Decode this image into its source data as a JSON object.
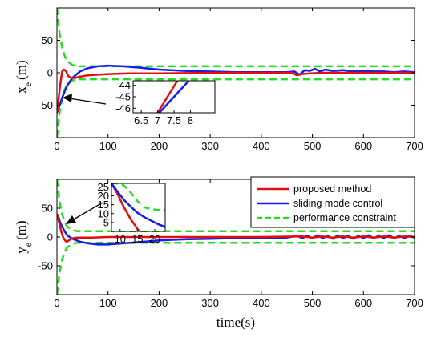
{
  "colors": {
    "proposed": "#e01010",
    "smc": "#1a1aee",
    "constraint": "#22dd22"
  },
  "legend": {
    "proposed": "proposed method",
    "smc": "sliding mode control",
    "constraint": "performance constraint"
  },
  "chart_data": [
    {
      "type": "line",
      "ylabel_main": "x",
      "ylabel_sub": "e",
      "ylabel_unit": "(m)",
      "xlim": [
        0,
        700
      ],
      "ylim": [
        -100,
        100
      ],
      "x_ticks": [
        0,
        100,
        200,
        300,
        400,
        500,
        600,
        700
      ],
      "y_ticks": [
        -50,
        0,
        50
      ],
      "series": [
        {
          "key": "constraint",
          "style": "dashed",
          "x": [
            0,
            5,
            10,
            15,
            20,
            30,
            40,
            60,
            80,
            120,
            200,
            300,
            700
          ],
          "y": [
            100,
            62,
            40,
            26,
            18,
            12,
            10,
            10,
            10,
            10,
            10,
            10,
            10
          ]
        },
        {
          "key": "constraint",
          "style": "dashed",
          "x": [
            0,
            5,
            10,
            15,
            20,
            30,
            40,
            60,
            80,
            120,
            200,
            300,
            700
          ],
          "y": [
            -100,
            -62,
            -40,
            -26,
            -18,
            -12,
            -10,
            -10,
            -10,
            -10,
            -10,
            -10,
            -10
          ]
        },
        {
          "key": "smc",
          "style": "solid",
          "x": [
            0,
            3,
            7,
            12,
            20,
            30,
            45,
            60,
            80,
            100,
            130,
            160,
            200,
            250,
            300,
            350,
            400,
            450,
            465,
            475,
            485,
            495,
            505,
            515,
            525,
            540,
            560,
            580,
            600,
            620,
            640,
            660,
            680,
            700
          ],
          "y": [
            -62,
            -55,
            -46,
            -35,
            -20,
            -8,
            2,
            7,
            10,
            11,
            10,
            8,
            5,
            3,
            2,
            1,
            1,
            1,
            2,
            -3,
            4,
            3,
            6,
            2,
            5,
            3,
            4,
            2,
            3,
            2,
            2,
            1,
            2,
            1
          ]
        },
        {
          "key": "proposed",
          "style": "solid",
          "x": [
            0,
            2,
            4,
            7,
            10,
            14,
            18,
            22,
            28,
            35,
            45,
            60,
            80,
            100,
            140,
            200,
            300,
            400,
            460,
            470,
            480,
            495,
            520,
            560,
            620,
            700
          ],
          "y": [
            -62,
            -50,
            -35,
            -15,
            2,
            5,
            2,
            -5,
            -8,
            -8,
            -6,
            -4,
            -3,
            -2,
            -1,
            -1,
            0,
            0,
            0,
            -4,
            -2,
            -1,
            0,
            0,
            0,
            0
          ]
        }
      ],
      "inset": {
        "xlim": [
          6.25,
          8.75
        ],
        "ylim": [
          -46.4,
          -43.6
        ],
        "x_ticks": [
          6.5,
          7,
          7.5,
          8
        ],
        "x_tick_labels": [
          "6.5",
          "7",
          "7.5",
          "8"
        ],
        "y_ticks": [
          -44,
          -45,
          -46
        ],
        "series": [
          {
            "key": "proposed",
            "x": [
              7.0,
              7.6
            ],
            "y": [
              -46.4,
              -43.6
            ]
          },
          {
            "key": "smc",
            "x": [
              7.05,
              7.95
            ],
            "y": [
              -46.4,
              -43.6
            ]
          }
        ]
      }
    },
    {
      "type": "line",
      "ylabel_main": "y",
      "ylabel_sub": "e",
      "ylabel_unit": "(m)",
      "xlabel": "time(s)",
      "xlim": [
        0,
        700
      ],
      "ylim": [
        -100,
        100
      ],
      "x_ticks": [
        0,
        100,
        200,
        300,
        400,
        500,
        600,
        700
      ],
      "y_ticks": [
        -50,
        0,
        50
      ],
      "series": [
        {
          "key": "constraint",
          "style": "dashed",
          "x": [
            0,
            5,
            10,
            15,
            20,
            30,
            40,
            60,
            80,
            120,
            200,
            300,
            700
          ],
          "y": [
            100,
            62,
            40,
            26,
            18,
            12,
            10,
            10,
            10,
            10,
            10,
            10,
            10
          ]
        },
        {
          "key": "constraint",
          "style": "dashed",
          "x": [
            0,
            5,
            10,
            15,
            20,
            30,
            40,
            60,
            80,
            120,
            200,
            300,
            700
          ],
          "y": [
            -100,
            -62,
            -40,
            -26,
            -18,
            -12,
            -10,
            -10,
            -10,
            -10,
            -10,
            -10,
            -10
          ]
        },
        {
          "key": "smc",
          "style": "solid",
          "x": [
            0,
            3,
            6,
            10,
            15,
            20,
            30,
            45,
            60,
            80,
            100,
            130,
            160,
            200,
            250,
            300,
            350,
            400,
            450,
            470,
            480,
            490,
            500,
            510,
            520,
            530,
            540,
            550,
            560,
            570,
            580,
            590,
            600,
            610,
            620,
            630,
            640,
            650,
            660,
            670,
            680,
            690,
            700
          ],
          "y": [
            40,
            35,
            26,
            18,
            10,
            3,
            -3,
            -8,
            -11,
            -13,
            -13,
            -11,
            -9,
            -6,
            -4,
            -3,
            -2,
            -1,
            -1,
            2,
            -2,
            2,
            -2,
            3,
            -2,
            2,
            -3,
            3,
            -2,
            2,
            -3,
            2,
            -2,
            3,
            -2,
            2,
            -2,
            3,
            -2,
            2,
            -2,
            2,
            -1
          ]
        },
        {
          "key": "proposed",
          "style": "solid",
          "x": [
            0,
            3,
            6,
            9,
            12,
            15,
            18,
            22,
            26,
            32,
            40,
            50,
            70,
            100,
            150,
            200,
            300,
            400,
            480,
            500,
            520,
            540,
            560,
            580,
            600,
            620,
            640,
            660,
            680,
            700
          ],
          "y": [
            40,
            30,
            18,
            8,
            0,
            -5,
            -8,
            -7,
            -4,
            -2,
            -1,
            -1,
            -1,
            0,
            0,
            0,
            0,
            0,
            1,
            -1,
            1,
            -1,
            1,
            -1,
            1,
            -1,
            1,
            -1,
            1,
            0
          ]
        }
      ],
      "inset": {
        "xlim": [
          7.5,
          23
        ],
        "ylim": [
          0,
          27
        ],
        "x_ticks": [
          10,
          15,
          20
        ],
        "x_tick_labels": [
          "10",
          "15",
          "20"
        ],
        "y_ticks": [
          25,
          20,
          15,
          10,
          5
        ],
        "series": [
          {
            "key": "constraint",
            "style": "dashed",
            "x": [
              7.5,
              9,
              11,
              13,
              15,
              17,
              19,
              21,
              23
            ],
            "y": [
              27,
              27,
              26,
              22,
              17,
              13.5,
              12.5,
              12,
              12
            ]
          },
          {
            "key": "proposed",
            "x": [
              7.5,
              9,
              11,
              13,
              15.5
            ],
            "y": [
              27,
              22,
              14,
              7,
              0
            ]
          },
          {
            "key": "smc",
            "x": [
              7.5,
              9,
              11,
              13,
              15,
              17,
              19,
              21,
              23
            ],
            "y": [
              27,
              23,
              18,
              14,
              10.5,
              8,
              6,
              4,
              2.5
            ]
          }
        ]
      }
    }
  ]
}
